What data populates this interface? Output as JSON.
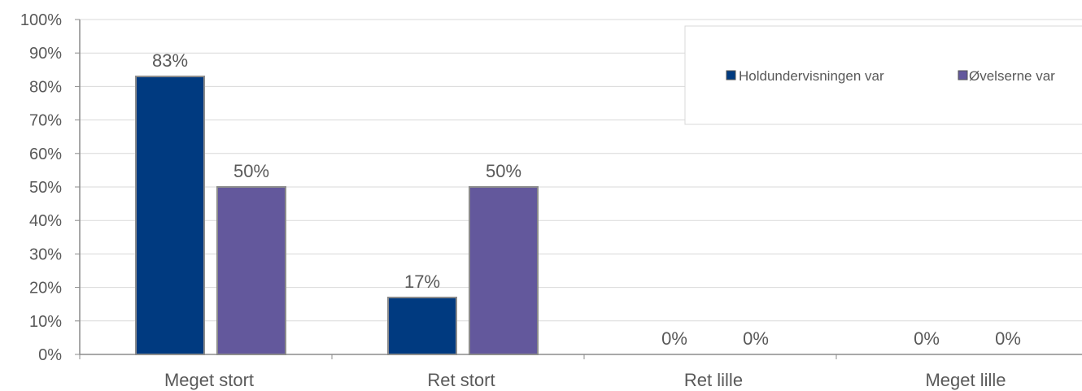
{
  "chart_data": {
    "type": "bar",
    "categories": [
      "Meget stort",
      "Ret stort",
      "Ret lille",
      "Meget lille"
    ],
    "series": [
      {
        "name": "Holdundervisningen var",
        "values": [
          83,
          17,
          0,
          0
        ],
        "labels": [
          "83%",
          "17%",
          "0%",
          "0%"
        ],
        "color": "#003A80"
      },
      {
        "name": "Øvelserne var",
        "values": [
          50,
          50,
          0,
          0
        ],
        "labels": [
          "50%",
          "50%",
          "0%",
          "0%"
        ],
        "color": "#63589C"
      }
    ],
    "ylim": [
      0,
      100
    ],
    "yticks": [
      "0%",
      "10%",
      "20%",
      "30%",
      "40%",
      "50%",
      "60%",
      "70%",
      "80%",
      "90%",
      "100%"
    ],
    "grid": true,
    "legend_position": "top-right",
    "bar_border_color": "#8C8C8C",
    "axis_color": "#8C8C8C",
    "grid_color": "#D9D9D9"
  }
}
